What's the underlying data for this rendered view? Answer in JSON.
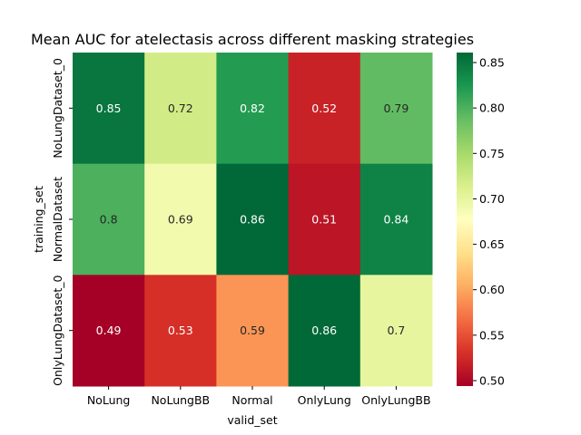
{
  "chart_data": {
    "type": "heatmap",
    "title": "Mean AUC for atelectasis across different masking strategies",
    "xlabel": "valid_set",
    "ylabel": "training_set",
    "x_categories": [
      "NoLung",
      "NoLungBB",
      "Normal",
      "OnlyLung",
      "OnlyLungBB"
    ],
    "y_categories": [
      "NoLungDataset_0",
      "NormalDataset",
      "OnlyLungDataset_0"
    ],
    "values": [
      [
        0.85,
        0.72,
        0.82,
        0.52,
        0.79
      ],
      [
        0.8,
        0.69,
        0.86,
        0.51,
        0.84
      ],
      [
        0.49,
        0.53,
        0.59,
        0.86,
        0.7
      ]
    ],
    "annotations": [
      [
        "0.85",
        "0.72",
        "0.82",
        "0.52",
        "0.79"
      ],
      [
        "0.8",
        "0.69",
        "0.86",
        "0.51",
        "0.84"
      ],
      [
        "0.49",
        "0.53",
        "0.59",
        "0.86",
        "0.7"
      ]
    ],
    "colormap": "RdYlGn",
    "vmin": 0.494,
    "vmax": 0.861,
    "colorbar_ticks": [
      0.5,
      0.55,
      0.6,
      0.65,
      0.7,
      0.75,
      0.8,
      0.85
    ],
    "colorbar_tick_labels": [
      "0.50",
      "0.55",
      "0.60",
      "0.65",
      "0.70",
      "0.75",
      "0.80",
      "0.85"
    ],
    "grid": false
  }
}
